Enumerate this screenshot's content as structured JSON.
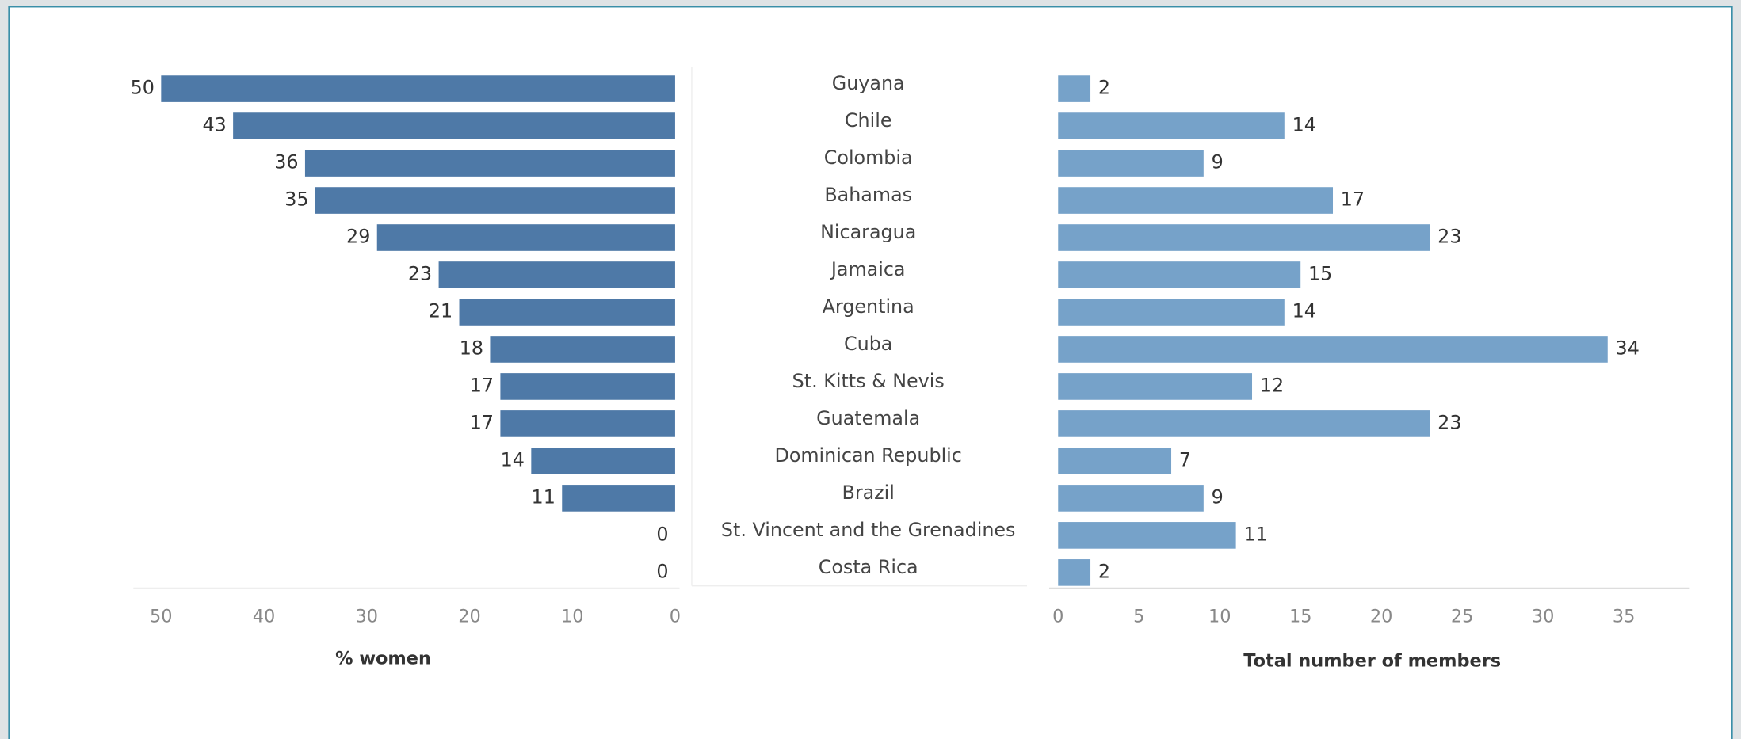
{
  "chart_data": [
    {
      "type": "bar",
      "orientation": "horizontal",
      "x_reversed": true,
      "categories": [
        "Guyana",
        "Chile",
        "Colombia",
        "Bahamas",
        "Nicaragua",
        "Jamaica",
        "Argentina",
        "Cuba",
        "St. Kitts & Nevis",
        "Guatemala",
        "Dominican Republic",
        "Brazil",
        "St. Vincent and the Grenadines",
        "Costa Rica"
      ],
      "values": [
        50,
        43,
        36,
        35,
        29,
        23,
        21,
        18,
        17,
        17,
        14,
        11,
        0,
        0
      ],
      "color": "#4e79a7",
      "xlim": [
        0,
        50
      ],
      "xticks": [
        0,
        10,
        20,
        30,
        40,
        50
      ],
      "xlabel": "% women"
    },
    {
      "type": "bar",
      "orientation": "horizontal",
      "values": [
        2,
        14,
        9,
        17,
        23,
        15,
        14,
        34,
        12,
        23,
        7,
        9,
        11,
        2
      ],
      "color": "#76a2c9",
      "xlim": [
        0,
        39
      ],
      "xticks": [
        0,
        5,
        10,
        15,
        20,
        25,
        30,
        35
      ],
      "xlabel": "Total number of members"
    }
  ]
}
